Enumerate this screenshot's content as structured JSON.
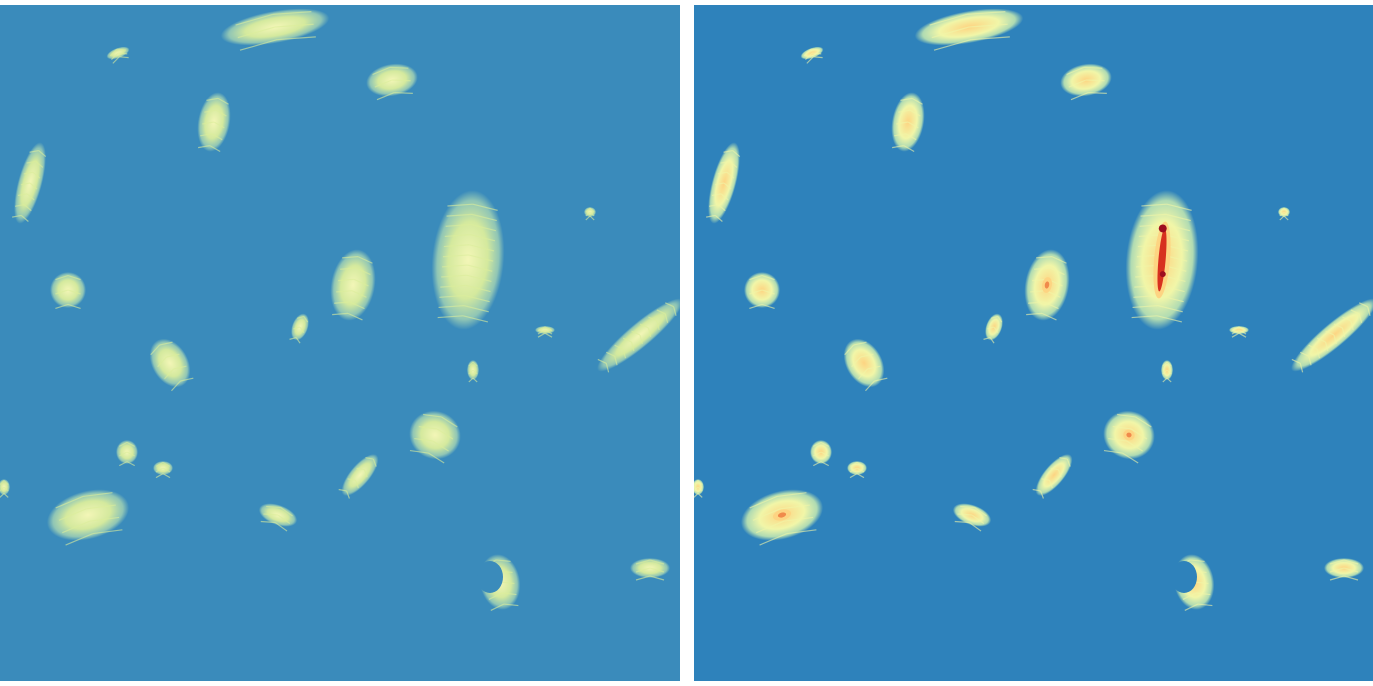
{
  "view": {
    "panels": [
      {
        "id": "left",
        "style": "muted hypsometric tint",
        "sea_color": "#3a8bbb"
      },
      {
        "id": "right",
        "style": "saturated hypsometric tint (spectral)",
        "sea_color": "#2e82bb"
      }
    ]
  },
  "palette": {
    "sea_left": "#3a8bbb",
    "sea_right": "#2e82bb",
    "low_left": "#9fd0b4",
    "mid_left": "#dcee9c",
    "high_left": "#f3f6b7",
    "low_right": "#b7e0b2",
    "mid_right": "#f1f6a8",
    "high_right": "#fdd482",
    "peak_right": "#d7301f",
    "summit_right": "#9e0d1f"
  }
}
